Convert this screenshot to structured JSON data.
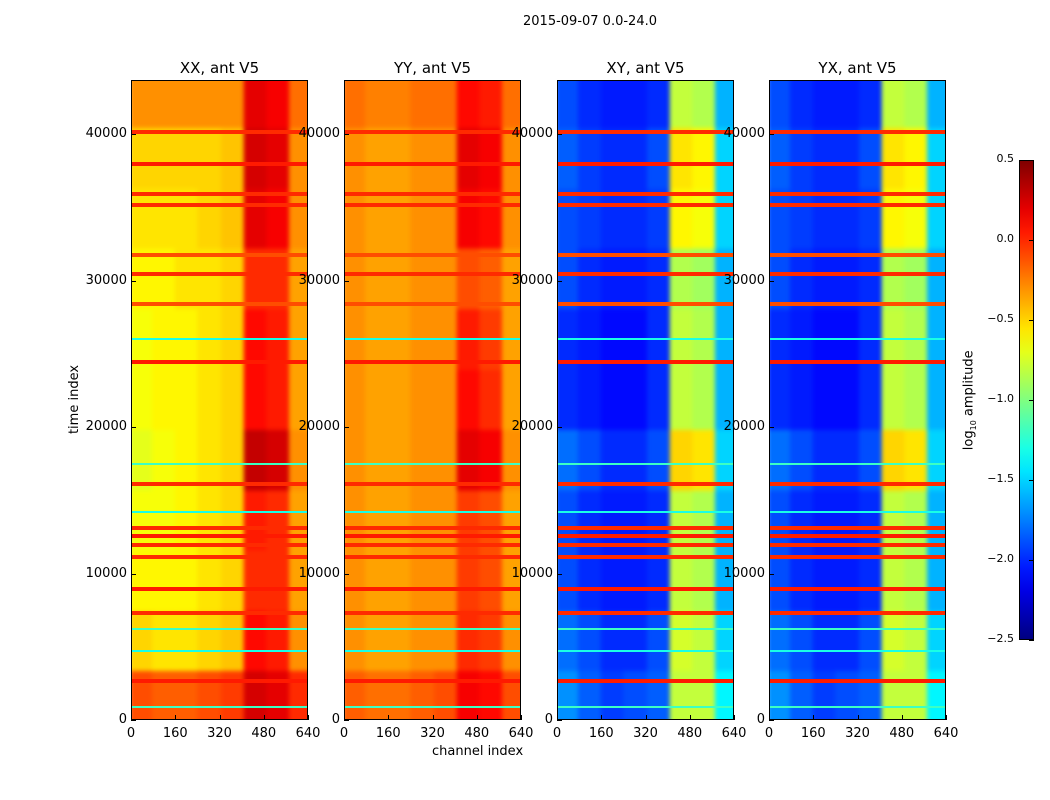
{
  "chart_data": {
    "type": "heatmap",
    "title": "2015-09-07 0.0-24.0",
    "xlabel": "channel index",
    "ylabel": "time index",
    "xlim": [
      0,
      640
    ],
    "ylim": [
      0,
      43700
    ],
    "xticks": [
      0,
      160,
      320,
      480,
      640
    ],
    "yticks": [
      0,
      10000,
      20000,
      30000,
      40000
    ],
    "channel_bins": [
      0,
      80,
      160,
      240,
      320,
      400,
      480,
      560,
      640
    ],
    "time_bins": [
      0,
      4000,
      8000,
      12000,
      16000,
      20000,
      24000,
      28000,
      32000,
      36000,
      40000,
      43700
    ],
    "colormap": "jet",
    "colorbar": {
      "label": "log10 amplitude",
      "label_main": "log",
      "label_sub": "10",
      "label_rest": " amplitude",
      "range": [
        -2.5,
        0.5
      ],
      "ticks": [
        "0.5",
        "0.0",
        "−0.5",
        "−1.0",
        "−1.5",
        "−2.0",
        "−2.5"
      ],
      "tick_values": [
        0.5,
        0.0,
        -0.5,
        -1.0,
        -1.5,
        -2.0,
        -2.5
      ]
    },
    "panels": [
      {
        "title": "XX, ant V5",
        "values": [
          [
            -0.1,
            -0.15,
            -0.15,
            -0.1,
            -0.05,
            0.25,
            0.2,
            0.0
          ],
          [
            -0.5,
            -0.55,
            -0.55,
            -0.5,
            -0.45,
            0.1,
            0.05,
            -0.3
          ],
          [
            -0.6,
            -0.6,
            -0.6,
            -0.55,
            -0.5,
            0.0,
            0.0,
            -0.35
          ],
          [
            -0.65,
            -0.65,
            -0.6,
            -0.55,
            -0.5,
            0.05,
            0.0,
            -0.35
          ],
          [
            -0.7,
            -0.65,
            -0.6,
            -0.55,
            -0.5,
            0.3,
            0.25,
            -0.3
          ],
          [
            -0.65,
            -0.6,
            -0.6,
            -0.55,
            -0.5,
            0.1,
            0.05,
            -0.35
          ],
          [
            -0.65,
            -0.6,
            -0.6,
            -0.55,
            -0.5,
            0.1,
            0.05,
            -0.35
          ],
          [
            -0.6,
            -0.6,
            -0.55,
            -0.55,
            -0.5,
            0.0,
            0.0,
            -0.35
          ],
          [
            -0.55,
            -0.55,
            -0.55,
            -0.5,
            -0.45,
            0.2,
            0.15,
            -0.3
          ],
          [
            -0.5,
            -0.5,
            -0.5,
            -0.5,
            -0.45,
            0.25,
            0.2,
            -0.3
          ],
          [
            -0.3,
            -0.3,
            -0.3,
            -0.3,
            -0.3,
            0.2,
            0.15,
            -0.2
          ]
        ]
      },
      {
        "title": "YY, ant V5",
        "values": [
          [
            -0.15,
            -0.2,
            -0.2,
            -0.15,
            -0.1,
            0.15,
            0.1,
            -0.1
          ],
          [
            -0.3,
            -0.35,
            -0.35,
            -0.3,
            -0.3,
            0.0,
            -0.05,
            -0.3
          ],
          [
            -0.3,
            -0.35,
            -0.35,
            -0.3,
            -0.3,
            -0.05,
            -0.1,
            -0.35
          ],
          [
            -0.3,
            -0.35,
            -0.35,
            -0.3,
            -0.3,
            -0.05,
            -0.1,
            -0.35
          ],
          [
            -0.3,
            -0.35,
            -0.35,
            -0.3,
            -0.3,
            0.2,
            0.15,
            -0.3
          ],
          [
            -0.3,
            -0.35,
            -0.35,
            -0.3,
            -0.3,
            0.1,
            0.0,
            -0.35
          ],
          [
            -0.3,
            -0.35,
            -0.35,
            -0.3,
            -0.3,
            0.05,
            -0.05,
            -0.35
          ],
          [
            -0.3,
            -0.35,
            -0.35,
            -0.3,
            -0.3,
            -0.1,
            -0.15,
            -0.35
          ],
          [
            -0.3,
            -0.35,
            -0.35,
            -0.3,
            -0.3,
            0.15,
            0.1,
            -0.3
          ],
          [
            -0.3,
            -0.35,
            -0.35,
            -0.3,
            -0.3,
            0.2,
            0.15,
            -0.3
          ],
          [
            -0.2,
            -0.25,
            -0.25,
            -0.2,
            -0.2,
            0.1,
            0.05,
            -0.2
          ]
        ]
      },
      {
        "title": "XY, ant V5",
        "values": [
          [
            -1.7,
            -1.85,
            -1.95,
            -1.9,
            -1.85,
            -0.8,
            -0.8,
            -1.4
          ],
          [
            -1.8,
            -1.9,
            -2.0,
            -2.0,
            -1.9,
            -0.75,
            -0.8,
            -1.5
          ],
          [
            -1.9,
            -2.0,
            -2.05,
            -2.05,
            -2.0,
            -0.8,
            -0.85,
            -1.6
          ],
          [
            -1.9,
            -2.0,
            -2.05,
            -2.05,
            -2.0,
            -0.8,
            -0.85,
            -1.6
          ],
          [
            -1.8,
            -1.9,
            -2.0,
            -2.0,
            -1.9,
            -0.5,
            -0.55,
            -1.5
          ],
          [
            -2.0,
            -2.05,
            -2.1,
            -2.1,
            -2.0,
            -0.8,
            -0.85,
            -1.6
          ],
          [
            -2.0,
            -2.05,
            -2.1,
            -2.1,
            -2.0,
            -0.8,
            -0.85,
            -1.6
          ],
          [
            -1.9,
            -2.0,
            -2.05,
            -2.05,
            -2.0,
            -0.85,
            -0.9,
            -1.6
          ],
          [
            -1.9,
            -1.95,
            -2.0,
            -2.0,
            -1.95,
            -0.6,
            -0.65,
            -1.5
          ],
          [
            -1.85,
            -1.95,
            -2.0,
            -2.0,
            -1.9,
            -0.55,
            -0.6,
            -1.5
          ],
          [
            -1.9,
            -2.0,
            -2.05,
            -2.05,
            -2.0,
            -0.8,
            -0.85,
            -1.6
          ]
        ]
      },
      {
        "title": "YX, ant V5",
        "values": [
          [
            -1.7,
            -1.85,
            -1.95,
            -1.9,
            -1.85,
            -0.8,
            -0.8,
            -1.4
          ],
          [
            -1.8,
            -1.9,
            -2.0,
            -2.0,
            -1.9,
            -0.75,
            -0.8,
            -1.5
          ],
          [
            -1.9,
            -2.0,
            -2.05,
            -2.05,
            -2.0,
            -0.8,
            -0.85,
            -1.6
          ],
          [
            -1.9,
            -2.0,
            -2.05,
            -2.05,
            -2.0,
            -0.8,
            -0.85,
            -1.6
          ],
          [
            -1.8,
            -1.9,
            -2.0,
            -2.0,
            -1.9,
            -0.5,
            -0.55,
            -1.5
          ],
          [
            -2.0,
            -2.05,
            -2.1,
            -2.1,
            -2.0,
            -0.8,
            -0.85,
            -1.6
          ],
          [
            -2.0,
            -2.05,
            -2.1,
            -2.1,
            -2.0,
            -0.8,
            -0.85,
            -1.6
          ],
          [
            -1.9,
            -2.0,
            -2.05,
            -2.05,
            -2.0,
            -0.85,
            -0.9,
            -1.6
          ],
          [
            -1.9,
            -1.95,
            -2.0,
            -2.0,
            -1.95,
            -0.6,
            -0.65,
            -1.5
          ],
          [
            -1.85,
            -1.95,
            -2.0,
            -2.0,
            -1.9,
            -0.55,
            -0.6,
            -1.5
          ],
          [
            -1.9,
            -2.0,
            -2.05,
            -2.05,
            -2.0,
            -0.8,
            -0.85,
            -1.6
          ]
        ]
      }
    ],
    "rfi_rows": [
      {
        "time": 40200,
        "value": 0.0
      },
      {
        "time": 38000,
        "value": 0.05
      },
      {
        "time": 36000,
        "value": 0.0
      },
      {
        "time": 35200,
        "value": 0.0
      },
      {
        "time": 31800,
        "value": -0.1
      },
      {
        "time": 30500,
        "value": 0.0
      },
      {
        "time": 28500,
        "value": -0.1
      },
      {
        "time": 26000,
        "value": -1.3
      },
      {
        "time": 24500,
        "value": 0.05
      },
      {
        "time": 17500,
        "value": -1.2
      },
      {
        "time": 16200,
        "value": 0.0
      },
      {
        "time": 14200,
        "value": -1.3
      },
      {
        "time": 13200,
        "value": 0.0
      },
      {
        "time": 12600,
        "value": 0.05
      },
      {
        "time": 12000,
        "value": 0.0
      },
      {
        "time": 11200,
        "value": 0.0
      },
      {
        "time": 9000,
        "value": 0.05
      },
      {
        "time": 7400,
        "value": 0.0
      },
      {
        "time": 6200,
        "value": -1.2
      },
      {
        "time": 4700,
        "value": -1.3
      },
      {
        "time": 2700,
        "value": 0.05
      },
      {
        "time": 900,
        "value": -1.2
      }
    ]
  }
}
